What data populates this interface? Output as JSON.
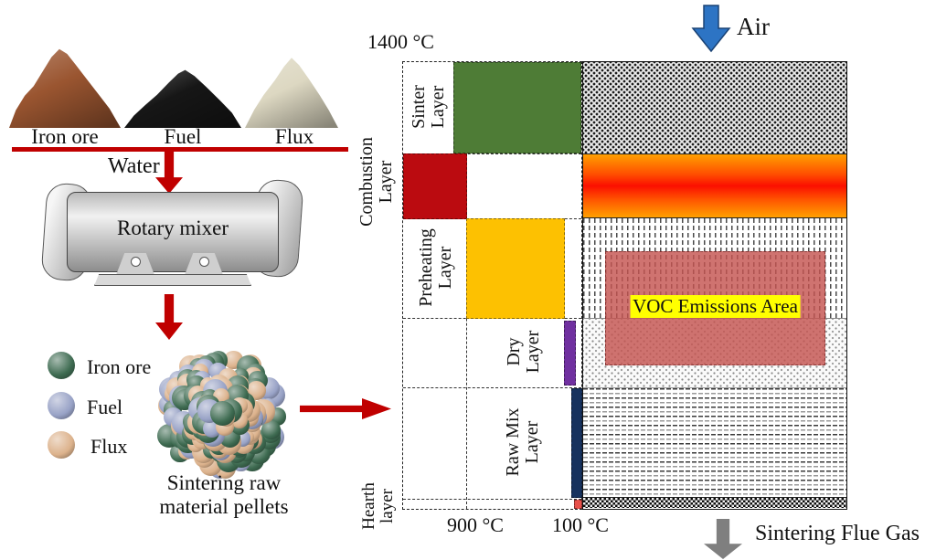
{
  "left_flow": {
    "materials": [
      {
        "label": "Iron ore"
      },
      {
        "label": "Fuel"
      },
      {
        "label": "Flux"
      }
    ],
    "water_label": "Water",
    "mixer_label": "Rotary mixer",
    "legend": [
      {
        "label": "Iron ore",
        "color": "#3e6b51"
      },
      {
        "label": "Fuel",
        "color": "#98a2c6"
      },
      {
        "label": "Flux",
        "color": "#dcb28c"
      }
    ],
    "pellet": {
      "caption_line1": "Sintering raw",
      "caption_line2": "material pellets",
      "colors": [
        "#3e6b51",
        "#98a2c6",
        "#dcb28c"
      ]
    }
  },
  "bed_diagram": {
    "temp_top": "1400 °C",
    "temp_mid": "900 °C",
    "temp_low": "100 °C",
    "air_label": "Air",
    "flue_gas_label": "Sintering Flue Gas",
    "voc_label": "VOC Emissions Area",
    "layers": [
      {
        "label": "Sinter Layer",
        "color": "#4e7c36"
      },
      {
        "label": "Combustion Layer",
        "color": "#bb0b10"
      },
      {
        "label": "Preheating Layer",
        "color": "#fdc101"
      },
      {
        "label": "Dry Layer",
        "color": "#7030a0"
      },
      {
        "label": "Raw Mix Layer",
        "color": "#17325e"
      },
      {
        "label": "Hearth layer",
        "color": "#e8504a"
      }
    ]
  },
  "colors": {
    "iron_ore_pile": "#9a5530",
    "fuel_pile": "#161616",
    "flux_pile": "#ddd8c2",
    "arrow_red": "#c00000",
    "air_blue": "#2d74c4",
    "flue_gray": "#7f7f7f",
    "voc_fill": "rgba(197,84,80,0.82)",
    "voc_label_bg": "#ffff00"
  }
}
